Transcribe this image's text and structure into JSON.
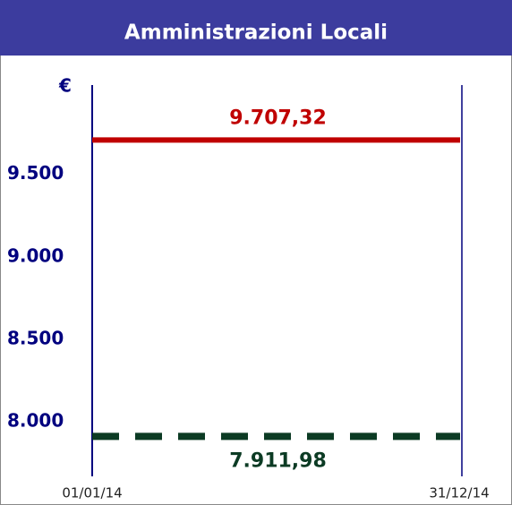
{
  "chart_data": {
    "type": "line",
    "title": "Amministrazioni Locali",
    "y_label": "€",
    "categories": [
      "01/01/14",
      "31/12/14"
    ],
    "series": [
      {
        "color": "#c00000",
        "dash": false,
        "values": [
          9707.32,
          9707.32
        ],
        "value_labels": [
          "9.707,32",
          null
        ]
      },
      {
        "color": "#0c3b24",
        "dash": true,
        "values": [
          7911.98,
          7911.98
        ],
        "value_labels": [
          "7.911,98",
          null
        ]
      }
    ],
    "ylim": [
      7670,
      10040
    ],
    "yticks": [
      {
        "value": 8000,
        "label": "8.000"
      },
      {
        "value": 8500,
        "label": "8.500"
      },
      {
        "value": 9000,
        "label": "9.000"
      },
      {
        "value": 9500,
        "label": "9.500"
      }
    ],
    "grid": false
  }
}
